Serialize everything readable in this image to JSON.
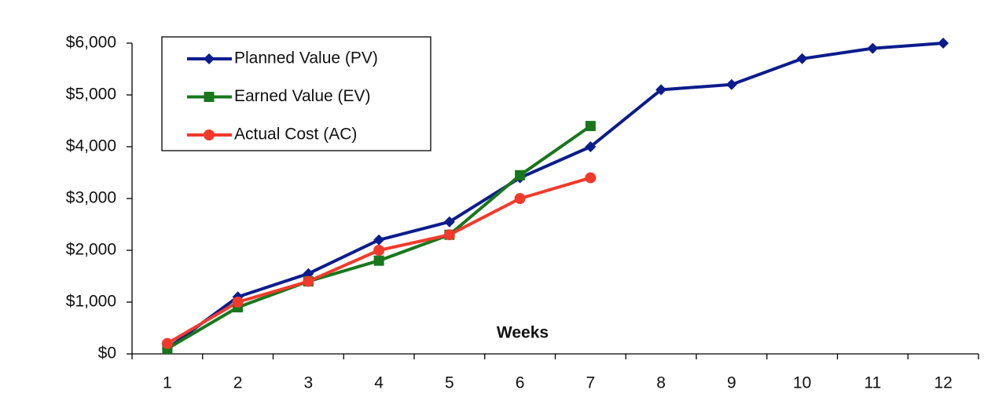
{
  "chart_data": {
    "type": "line",
    "x_label": "Weeks",
    "categories": [
      "1",
      "2",
      "3",
      "4",
      "5",
      "6",
      "7",
      "8",
      "9",
      "10",
      "11",
      "12"
    ],
    "series": [
      {
        "name": "Planned Value (PV)",
        "color": "#0b1c8c",
        "marker": "diamond",
        "values": [
          100,
          1100,
          1550,
          2200,
          2550,
          3400,
          4000,
          5100,
          5200,
          5700,
          5900,
          6000
        ]
      },
      {
        "name": "Earned Value (EV)",
        "color": "#18771c",
        "marker": "square",
        "values": [
          100,
          900,
          1400,
          1800,
          2300,
          3450,
          4400,
          null,
          null,
          null,
          null,
          null
        ]
      },
      {
        "name": "Actual Cost (AC)",
        "color": "#f23a2c",
        "marker": "circle",
        "values": [
          200,
          1000,
          1400,
          2000,
          2300,
          3000,
          3400,
          null,
          null,
          null,
          null,
          null
        ]
      }
    ],
    "ylim": [
      0,
      6000
    ],
    "yticks": [
      {
        "value": 0,
        "label": "$0"
      },
      {
        "value": 1000,
        "label": "$1,000"
      },
      {
        "value": 2000,
        "label": "$2,000"
      },
      {
        "value": 3000,
        "label": "$3,000"
      },
      {
        "value": 4000,
        "label": "$4,000"
      },
      {
        "value": 5000,
        "label": "$5,000"
      },
      {
        "value": 6000,
        "label": "$6,000"
      }
    ],
    "grid": false,
    "legend": "top-left"
  }
}
